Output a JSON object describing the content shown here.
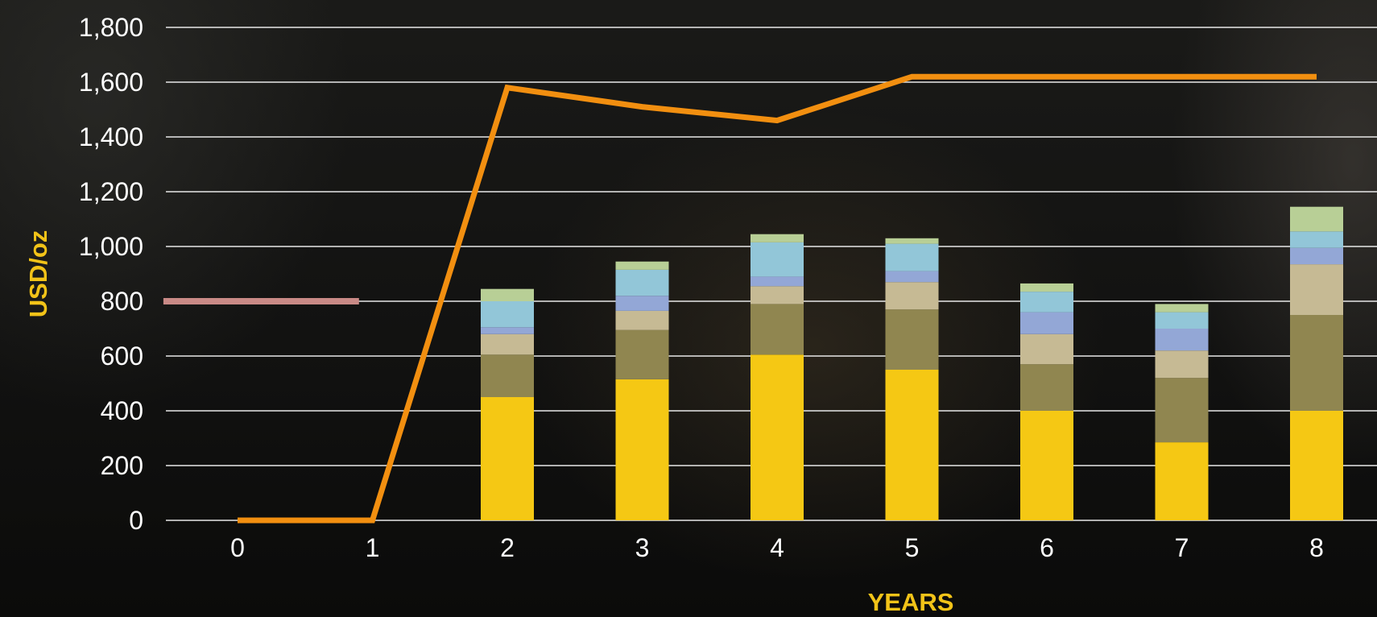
{
  "chart_data": {
    "type": "bar",
    "stacked": true,
    "xlabel": "YEARS",
    "ylabel": "USD/oz",
    "ylim": [
      0,
      1800
    ],
    "yticks": [
      "0",
      "200",
      "400",
      "600",
      "800",
      "1,000",
      "1,200",
      "1,400",
      "1,600",
      "1,800"
    ],
    "xticks": [
      "0",
      "1",
      "2",
      "3",
      "4",
      "5",
      "6",
      "7",
      "8"
    ],
    "grid": true,
    "legend": "none",
    "stack_categories": [
      "2",
      "3",
      "4",
      "5",
      "6",
      "7",
      "8"
    ],
    "series": [
      {
        "type": "bar",
        "color": "#f5c814",
        "values": [
          450,
          515,
          605,
          550,
          400,
          285,
          400
        ]
      },
      {
        "type": "bar",
        "color": "#908650",
        "values": [
          155,
          180,
          185,
          220,
          170,
          235,
          350
        ]
      },
      {
        "type": "bar",
        "color": "#c6ba94",
        "values": [
          75,
          70,
          65,
          100,
          110,
          100,
          185
        ]
      },
      {
        "type": "bar",
        "color": "#93a7d6",
        "values": [
          25,
          55,
          35,
          40,
          80,
          80,
          60
        ]
      },
      {
        "type": "bar",
        "color": "#92c6d8",
        "values": [
          95,
          95,
          125,
          100,
          75,
          60,
          60
        ]
      },
      {
        "type": "bar",
        "color": "#b8cf96",
        "values": [
          45,
          30,
          30,
          20,
          30,
          30,
          90
        ]
      },
      {
        "type": "line",
        "color": "#f28f10",
        "x": [
          0,
          1,
          2,
          3,
          4,
          5,
          6,
          7,
          8
        ],
        "values": [
          0,
          0,
          1580,
          1510,
          1460,
          1620,
          1620,
          1620,
          1620
        ]
      },
      {
        "type": "line",
        "color": "#c98a86",
        "x": [
          -0.55,
          0.9
        ],
        "values": [
          800,
          800
        ]
      }
    ],
    "colors": {
      "axis_title": "#f2c318",
      "gridline": "#e8e8e8",
      "tick_label": "#ffffff"
    }
  }
}
